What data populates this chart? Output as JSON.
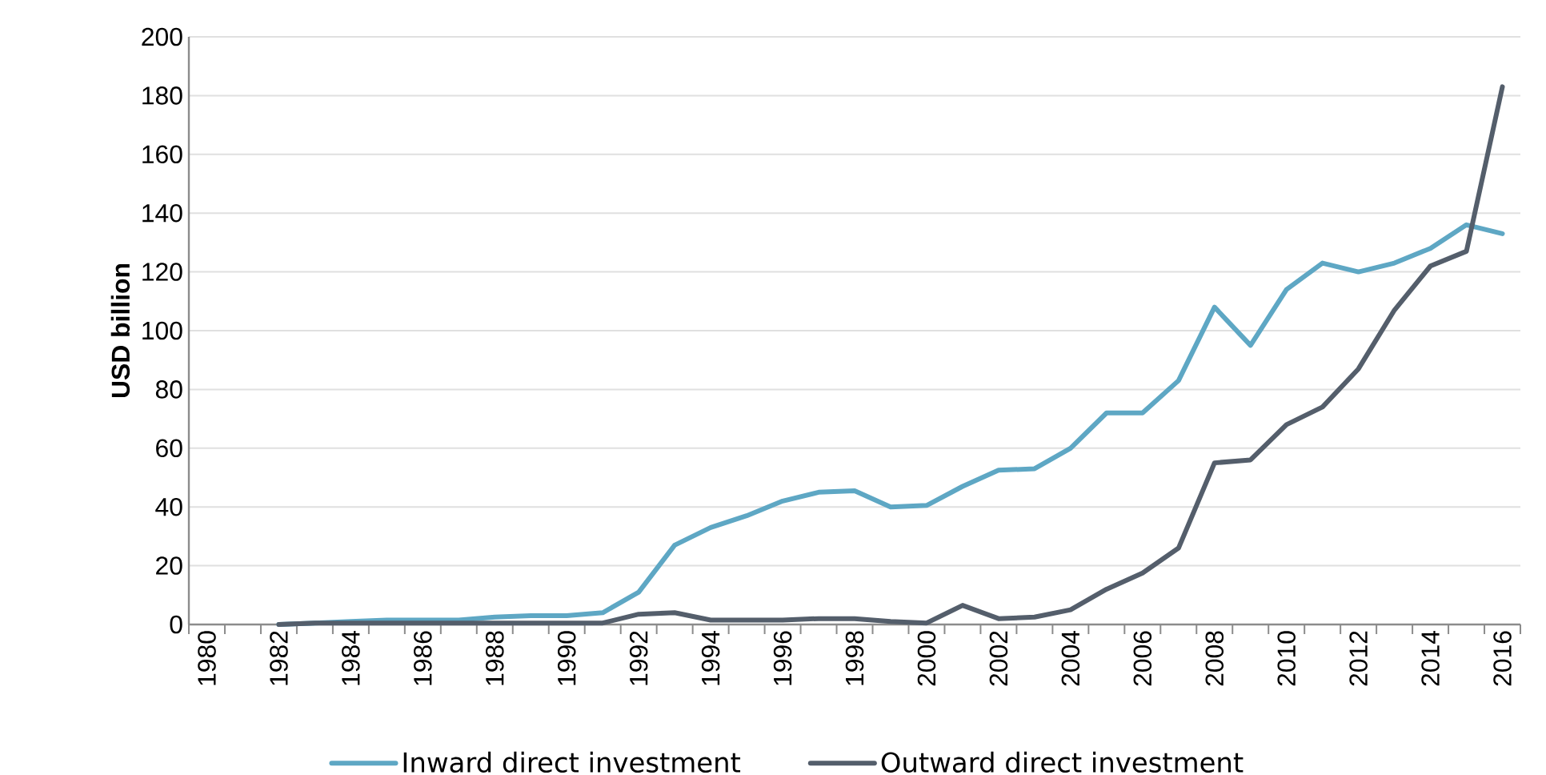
{
  "chart_data": {
    "type": "line",
    "ylabel": "USD billion",
    "categories": [
      "1980",
      null,
      "1982",
      null,
      "1984",
      null,
      "1986",
      null,
      "1988",
      null,
      "1990",
      null,
      "1992",
      null,
      "1994",
      null,
      "1996",
      null,
      "1998",
      null,
      "2000",
      null,
      "2002",
      null,
      "2004",
      null,
      "2006",
      null,
      "2008",
      null,
      "2010",
      null,
      "2012",
      null,
      "2014",
      null,
      "2016"
    ],
    "series": [
      {
        "name": "Inward direct investment",
        "color": "#5ea7c4",
        "values": [
          null,
          null,
          0,
          0.5,
          1,
          1.5,
          1.5,
          1.5,
          2.5,
          3,
          3,
          4,
          11,
          27,
          33,
          37,
          42,
          45,
          45.5,
          40,
          40.5,
          47,
          52.5,
          53,
          60,
          72,
          72,
          83,
          108,
          95,
          114,
          123,
          120,
          123,
          128,
          136,
          133
        ]
      },
      {
        "name": "Outward direct investment",
        "color": "#545e6b",
        "values": [
          null,
          null,
          0,
          0.5,
          0.5,
          0.5,
          0.5,
          0.5,
          0.5,
          0.5,
          0.5,
          0.5,
          3.5,
          4,
          1.5,
          1.5,
          1.5,
          2,
          2,
          1,
          0.5,
          6.5,
          2,
          2.5,
          5,
          12,
          17.5,
          26,
          55,
          56,
          68,
          74,
          87,
          107,
          122,
          127,
          183
        ]
      }
    ],
    "ylim": [
      0,
      200
    ],
    "yticks": [
      0,
      20,
      40,
      60,
      80,
      100,
      120,
      140,
      160,
      180,
      200
    ],
    "grid": "y",
    "legend": "bottom",
    "line_style": "solid"
  }
}
